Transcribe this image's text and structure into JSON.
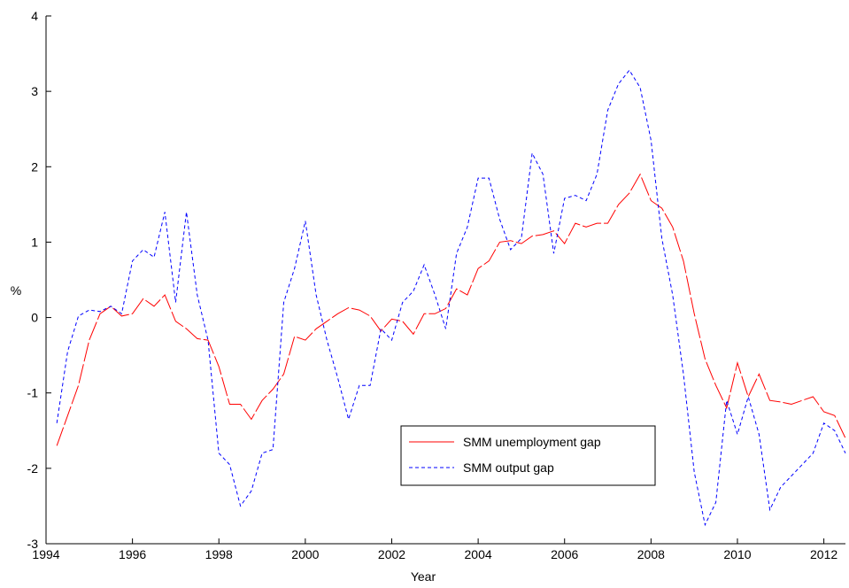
{
  "chart_data": {
    "type": "line",
    "xlabel": "Year",
    "ylabel": "%",
    "xlim": [
      1994,
      2012.5
    ],
    "ylim": [
      -3,
      4
    ],
    "x_ticks": [
      1994,
      1996,
      1998,
      2000,
      2002,
      2004,
      2006,
      2008,
      2010,
      2012
    ],
    "y_ticks": [
      -3,
      -2,
      -1,
      0,
      1,
      2,
      3,
      4
    ],
    "grid": false,
    "legend_position": "bottom-center",
    "series": [
      {
        "name": "SMM unemployment gap",
        "color": "#ff0000",
        "style": "dashed-long",
        "x": [
          1994.25,
          1994.5,
          1994.75,
          1995,
          1995.25,
          1995.5,
          1995.75,
          1996,
          1996.25,
          1996.5,
          1996.75,
          1997,
          1997.25,
          1997.5,
          1997.75,
          1998,
          1998.25,
          1998.5,
          1998.75,
          1999,
          1999.25,
          1999.5,
          1999.75,
          2000,
          2000.25,
          2000.5,
          2000.75,
          2001,
          2001.25,
          2001.5,
          2001.75,
          2002,
          2002.25,
          2002.5,
          2002.75,
          2003,
          2003.25,
          2003.5,
          2003.75,
          2004,
          2004.25,
          2004.5,
          2004.75,
          2005,
          2005.25,
          2005.5,
          2005.75,
          2006,
          2006.25,
          2006.5,
          2006.75,
          2007,
          2007.25,
          2007.5,
          2007.75,
          2008,
          2008.25,
          2008.5,
          2008.75,
          2009,
          2009.25,
          2009.5,
          2009.75,
          2010,
          2010.25,
          2010.5,
          2010.75,
          2011,
          2011.25,
          2011.5,
          2011.75,
          2012,
          2012.25,
          2012.5
        ],
        "values": [
          -1.7,
          -1.3,
          -0.9,
          -0.3,
          0.05,
          0.15,
          0.02,
          0.05,
          0.25,
          0.15,
          0.3,
          -0.05,
          -0.15,
          -0.28,
          -0.3,
          -0.65,
          -1.15,
          -1.15,
          -1.35,
          -1.1,
          -0.95,
          -0.75,
          -0.25,
          -0.3,
          -0.15,
          -0.05,
          0.05,
          0.13,
          0.1,
          0.02,
          -0.18,
          -0.02,
          -0.05,
          -0.22,
          0.05,
          0.05,
          0.12,
          0.38,
          0.3,
          0.65,
          0.75,
          1.0,
          1.02,
          0.98,
          1.08,
          1.1,
          1.15,
          0.98,
          1.25,
          1.2,
          1.25,
          1.25,
          1.5,
          1.65,
          1.9,
          1.55,
          1.45,
          1.2,
          0.75,
          0.05,
          -0.55,
          -0.9,
          -1.2,
          -0.6,
          -1.05,
          -0.75,
          -1.1,
          -1.12,
          -1.15,
          -1.1,
          -1.05,
          -1.25,
          -1.3,
          -1.6
        ]
      },
      {
        "name": "SMM output gap",
        "color": "#0000ff",
        "style": "dashed-short",
        "x": [
          1994.25,
          1994.5,
          1994.75,
          1995,
          1995.25,
          1995.5,
          1995.75,
          1996,
          1996.25,
          1996.5,
          1996.75,
          1997,
          1997.25,
          1997.5,
          1997.75,
          1998,
          1998.25,
          1998.5,
          1998.75,
          1999,
          1999.25,
          1999.5,
          1999.75,
          2000,
          2000.25,
          2000.5,
          2000.75,
          2001,
          2001.25,
          2001.5,
          2001.75,
          2002,
          2002.25,
          2002.5,
          2002.75,
          2003,
          2003.25,
          2003.5,
          2003.75,
          2004,
          2004.25,
          2004.5,
          2004.75,
          2005,
          2005.25,
          2005.5,
          2005.75,
          2006,
          2006.25,
          2006.5,
          2006.75,
          2007,
          2007.25,
          2007.5,
          2007.75,
          2008,
          2008.25,
          2008.5,
          2008.75,
          2009,
          2009.25,
          2009.5,
          2009.75,
          2010,
          2010.25,
          2010.5,
          2010.75,
          2011,
          2011.25,
          2011.5,
          2011.75,
          2012,
          2012.25,
          2012.5
        ],
        "values": [
          -1.4,
          -0.45,
          0.02,
          0.1,
          0.08,
          0.15,
          0.05,
          0.75,
          0.9,
          0.8,
          1.4,
          0.2,
          1.4,
          0.3,
          -0.3,
          -1.8,
          -1.95,
          -2.5,
          -2.3,
          -1.8,
          -1.75,
          0.2,
          0.65,
          1.28,
          0.3,
          -0.3,
          -0.8,
          -1.35,
          -0.9,
          -0.9,
          -0.15,
          -0.3,
          0.2,
          0.35,
          0.7,
          0.3,
          -0.15,
          0.85,
          1.2,
          1.85,
          1.85,
          1.3,
          0.9,
          1.05,
          2.18,
          1.9,
          0.85,
          1.58,
          1.62,
          1.55,
          1.9,
          2.75,
          3.1,
          3.28,
          3.05,
          2.35,
          1.05,
          0.3,
          -0.75,
          -2.05,
          -2.75,
          -2.45,
          -1.1,
          -1.55,
          -1.05,
          -1.55,
          -2.55,
          -2.25,
          -2.1,
          -1.95,
          -1.8,
          -1.4,
          -1.5,
          -1.8
        ]
      }
    ]
  }
}
